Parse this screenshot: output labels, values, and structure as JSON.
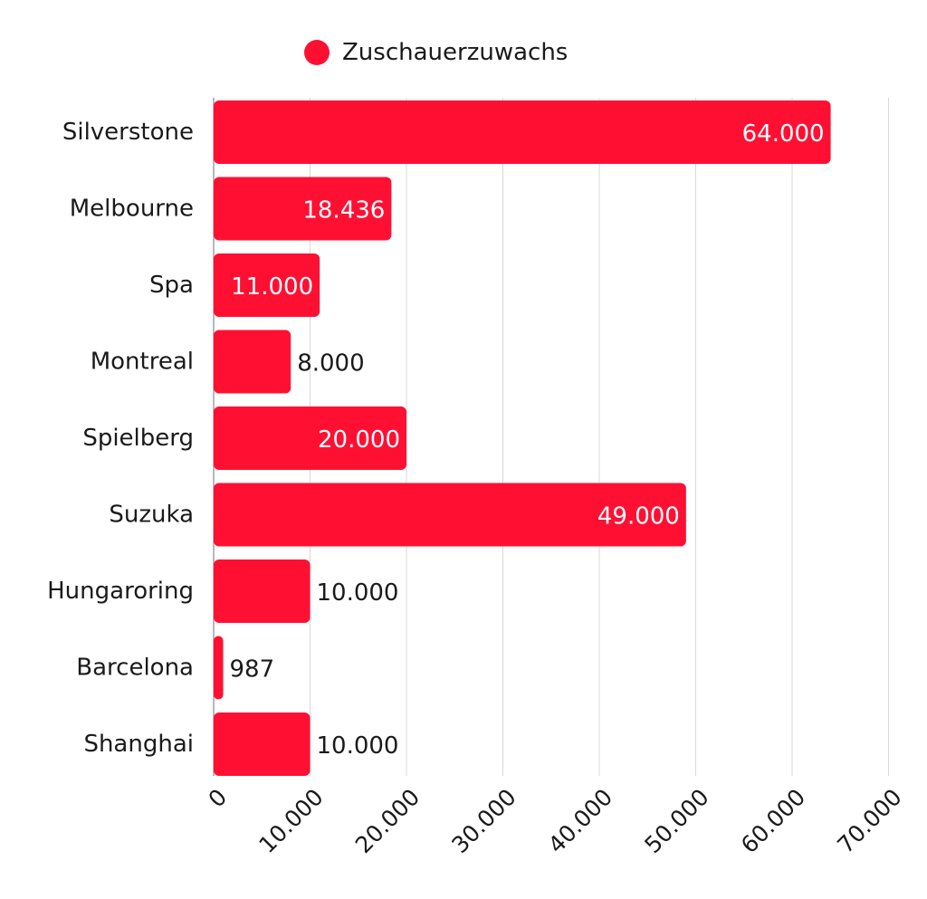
{
  "chart_data": {
    "type": "bar",
    "orientation": "horizontal",
    "categories": [
      "Silverstone",
      "Melbourne",
      "Spa",
      "Montreal",
      "Spielberg",
      "Suzuka",
      "Hungaroring",
      "Barcelona",
      "Shanghai"
    ],
    "series": [
      {
        "name": "Zuschauerzuwachs",
        "values": [
          64000,
          18436,
          11000,
          8000,
          20000,
          49000,
          10000,
          987,
          10000
        ],
        "value_labels": [
          "64.000",
          "18.436",
          "11.000",
          "8.000",
          "20.000",
          "49.000",
          "10.000",
          "987",
          "10.000"
        ],
        "color": "#ff1033"
      }
    ],
    "x_ticks": [
      0,
      10000,
      20000,
      30000,
      40000,
      50000,
      60000,
      70000
    ],
    "x_tick_labels": [
      "0",
      "10.000",
      "20.000",
      "30.000",
      "40.000",
      "50.000",
      "60.000",
      "70.000"
    ],
    "xlim": [
      0,
      70000
    ],
    "grid": true,
    "legend_position": "top-center",
    "colors": {
      "bar": "#ff1033",
      "grid": "#d9d9d9",
      "text": "#1a1a1a",
      "label_inside": "#ffffff"
    }
  }
}
